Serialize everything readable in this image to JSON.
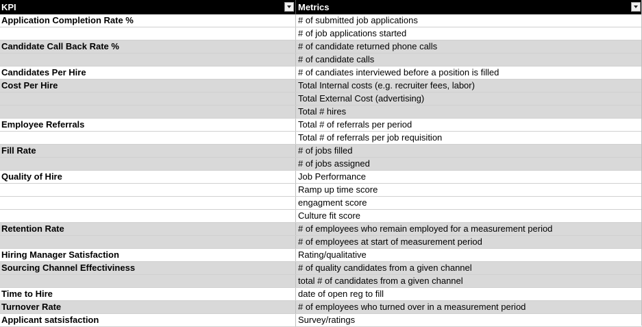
{
  "headers": {
    "kpi": "KPI",
    "metrics": "Metrics"
  },
  "rows": [
    {
      "kpi": "Application Completion Rate %",
      "metric": "# of submitted job applications"
    },
    {
      "kpi": "",
      "metric": "# of job applications started"
    },
    {
      "kpi": "Candidate Call Back Rate %",
      "metric": "# of candidate returned phone calls"
    },
    {
      "kpi": "",
      "metric": "# of candidate calls"
    },
    {
      "kpi": "Candidates Per Hire",
      "metric": "# of candiates interviewed before a position is filled"
    },
    {
      "kpi": "Cost Per Hire",
      "metric": "Total Internal costs (e.g. recruiter fees, labor)"
    },
    {
      "kpi": "",
      "metric": "Total External Cost (advertising)"
    },
    {
      "kpi": "",
      "metric": "Total # hires"
    },
    {
      "kpi": "Employee Referrals",
      "metric": "Total # of referrals per period"
    },
    {
      "kpi": "",
      "metric": "Total # of referrals per job requisition"
    },
    {
      "kpi": "Fill Rate",
      "metric": "# of jobs filled"
    },
    {
      "kpi": "",
      "metric": "# of jobs assigned"
    },
    {
      "kpi": "Quality of Hire",
      "metric": "Job Performance"
    },
    {
      "kpi": "",
      "metric": "Ramp up time score"
    },
    {
      "kpi": "",
      "metric": "engagment score"
    },
    {
      "kpi": "",
      "metric": "Culture fit score"
    },
    {
      "kpi": "Retention Rate",
      "metric": "# of employees who remain employed for a measurement period"
    },
    {
      "kpi": "",
      "metric": "# of employees at start of measurement period"
    },
    {
      "kpi": "Hiring Manager Satisfaction",
      "metric": "Rating/qualitative"
    },
    {
      "kpi": "Sourcing Channel Effectiviness",
      "metric": "# of quality candidates from a given channel"
    },
    {
      "kpi": "",
      "metric": "total # of candidates from a given channel"
    },
    {
      "kpi": "Time to Hire",
      "metric": "date of open reg to fill"
    },
    {
      "kpi": "Turnover Rate",
      "metric": "# of employees who turned over in a measurement period"
    },
    {
      "kpi": "Applicant satsisfaction",
      "metric": "Survey/ratings"
    }
  ],
  "colors": {
    "header_bg": "#000000",
    "header_text": "#ffffff",
    "band": "#d9d9d9"
  },
  "icons": {
    "filter": "dropdown-arrow-icon"
  }
}
